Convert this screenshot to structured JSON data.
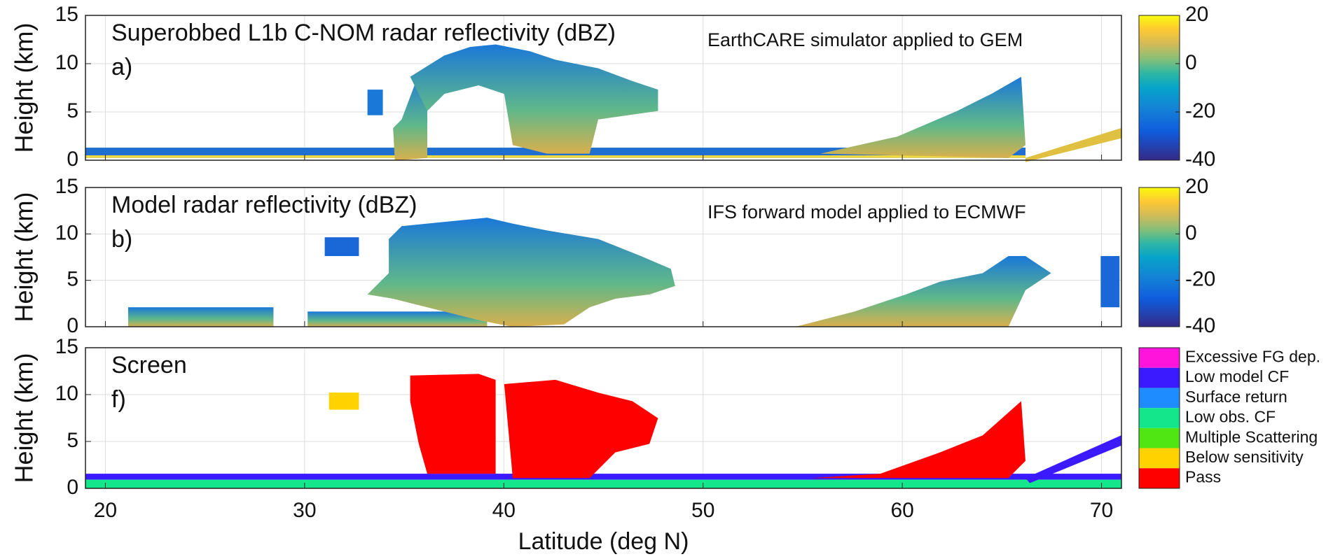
{
  "chart_data": [
    {
      "type": "curtain",
      "title": "Superobbed L1b C-NOM radar reflectivity (dBZ)",
      "panel_label": "a)",
      "annotation": "EarthCARE simulator applied to GEM",
      "y_label": "Height (km)",
      "xlim": [
        19,
        71
      ],
      "xticks": [
        20,
        30,
        40,
        50,
        60,
        70
      ],
      "ylim": [
        0,
        15
      ],
      "yticks": [
        0,
        5,
        10,
        15
      ],
      "grid": true,
      "colorbar": {
        "lim": [
          -40,
          20
        ],
        "ticks": [
          -40,
          -20,
          0,
          20
        ]
      }
    },
    {
      "type": "curtain",
      "title": "Model radar reflectivity (dBZ)",
      "panel_label": "b)",
      "annotation": "IFS forward model applied to ECMWF",
      "y_label": "Height (km)",
      "xlim": [
        19,
        71
      ],
      "xticks": [
        20,
        30,
        40,
        50,
        60,
        70
      ],
      "ylim": [
        0,
        15
      ],
      "yticks": [
        0,
        5,
        10,
        15
      ],
      "grid": true,
      "colorbar": {
        "lim": [
          -40,
          20
        ],
        "ticks": [
          -40,
          -20,
          0,
          20
        ]
      }
    },
    {
      "type": "categorical",
      "title": "Screen",
      "panel_label": "f)",
      "y_label": "Height (km)",
      "x_label": "Latitude (deg N)",
      "xlim": [
        19,
        71
      ],
      "xticks": [
        20,
        30,
        40,
        50,
        60,
        70
      ],
      "ylim": [
        0,
        15
      ],
      "yticks": [
        0,
        5,
        10,
        15
      ],
      "grid": true,
      "legend": [
        {
          "name": "Excessive FG dep.",
          "color": "#ff14dc"
        },
        {
          "name": "Low model CF",
          "color": "#3c1aff"
        },
        {
          "name": "Surface return",
          "color": "#1e8cff"
        },
        {
          "name": "Low obs. CF",
          "color": "#14e68c"
        },
        {
          "name": "Multiple Scattering",
          "color": "#50e614"
        },
        {
          "name": "Below sensitivity",
          "color": "#ffd200"
        },
        {
          "name": "Pass",
          "color": "#ff0000"
        }
      ]
    }
  ]
}
